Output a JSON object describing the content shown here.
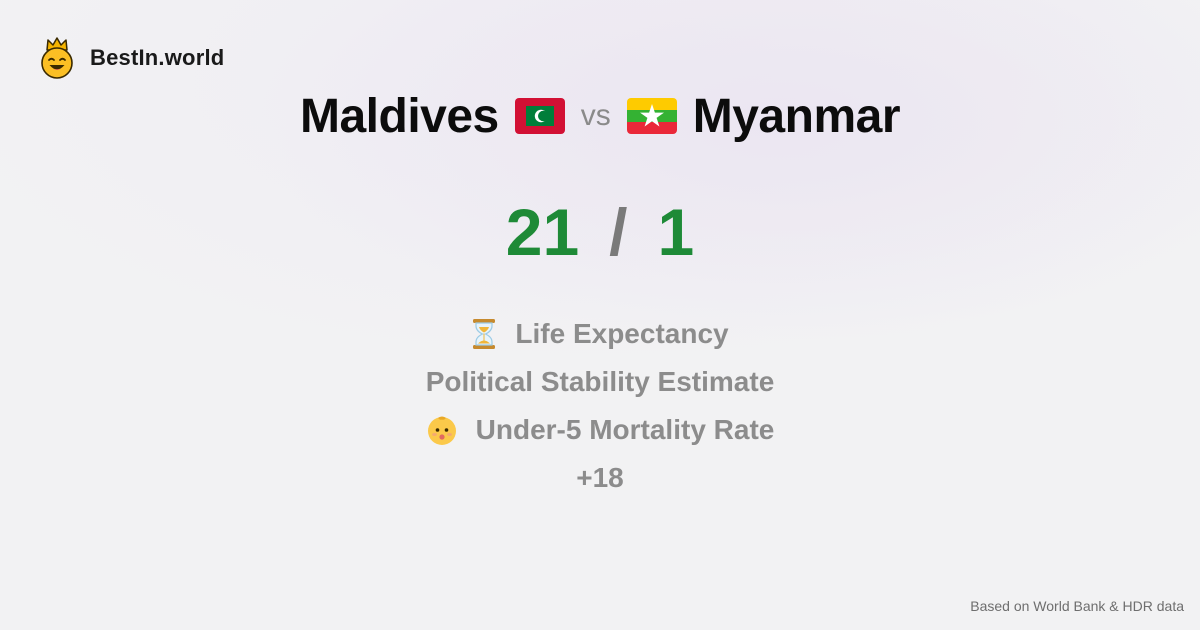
{
  "brand": {
    "name": "BestIn.world",
    "logo_icon": "crown-smiley-icon"
  },
  "comparison": {
    "left_country": "Maldives",
    "left_flag_icon": "maldives-flag-icon",
    "vs_label": "vs",
    "right_country": "Myanmar",
    "right_flag_icon": "myanmar-flag-icon",
    "left_score": "21",
    "separator": "/",
    "right_score": "1",
    "score_color": "#1e8a37"
  },
  "metrics": [
    {
      "label": "Life Expectancy",
      "icon": "hourglass-icon"
    },
    {
      "label": "Political Stability Estimate",
      "icon": ""
    },
    {
      "label": "Under-5 Mortality Rate",
      "icon": "baby-icon"
    }
  ],
  "more_count": "+18",
  "footer": {
    "source_note": "Based on World Bank & HDR data"
  },
  "colors": {
    "maldives_red": "#d21034",
    "maldives_green": "#007e3a",
    "myanmar_yellow": "#fecb00",
    "myanmar_green": "#34b233",
    "myanmar_red": "#ea2839",
    "metric_text": "#8c8c8c"
  }
}
